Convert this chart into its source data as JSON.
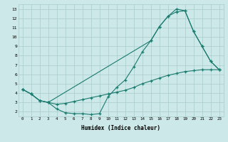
{
  "xlabel": "Humidex (Indice chaleur)",
  "bg_color": "#cde8e8",
  "grid_color": "#aacccc",
  "line_color": "#1a7a6e",
  "xlim": [
    -0.5,
    23.5
  ],
  "ylim": [
    1.5,
    13.5
  ],
  "xticks": [
    0,
    1,
    2,
    3,
    4,
    5,
    6,
    7,
    8,
    9,
    10,
    11,
    12,
    13,
    14,
    15,
    16,
    17,
    18,
    19,
    20,
    21,
    22,
    23
  ],
  "yticks": [
    2,
    3,
    4,
    5,
    6,
    7,
    8,
    9,
    10,
    11,
    12,
    13
  ],
  "line1_x": [
    0,
    1,
    2,
    3,
    4,
    5,
    6,
    7,
    8,
    9,
    10,
    11,
    12,
    13,
    14,
    15,
    16,
    17,
    18,
    19,
    20,
    21,
    22,
    23
  ],
  "line1_y": [
    4.4,
    3.9,
    3.2,
    3.0,
    2.3,
    1.9,
    1.8,
    1.8,
    1.7,
    1.8,
    3.6,
    4.6,
    5.4,
    6.8,
    8.4,
    9.6,
    11.1,
    12.2,
    12.7,
    12.8,
    10.6,
    9.0,
    7.4,
    6.5
  ],
  "line2_x": [
    0,
    1,
    2,
    3,
    15,
    16,
    17,
    18,
    19,
    20,
    21,
    22,
    23
  ],
  "line2_y": [
    4.4,
    3.9,
    3.2,
    3.0,
    9.6,
    11.1,
    12.2,
    13.0,
    12.8,
    10.6,
    9.0,
    7.4,
    6.5
  ],
  "line3_x": [
    0,
    1,
    2,
    3,
    4,
    5,
    6,
    7,
    8,
    9,
    10,
    11,
    12,
    13,
    14,
    15,
    16,
    17,
    18,
    19,
    20,
    21,
    22,
    23
  ],
  "line3_y": [
    4.4,
    3.9,
    3.2,
    3.0,
    2.8,
    2.9,
    3.1,
    3.3,
    3.5,
    3.7,
    3.9,
    4.1,
    4.3,
    4.6,
    5.0,
    5.3,
    5.6,
    5.9,
    6.1,
    6.3,
    6.4,
    6.5,
    6.5,
    6.5
  ]
}
